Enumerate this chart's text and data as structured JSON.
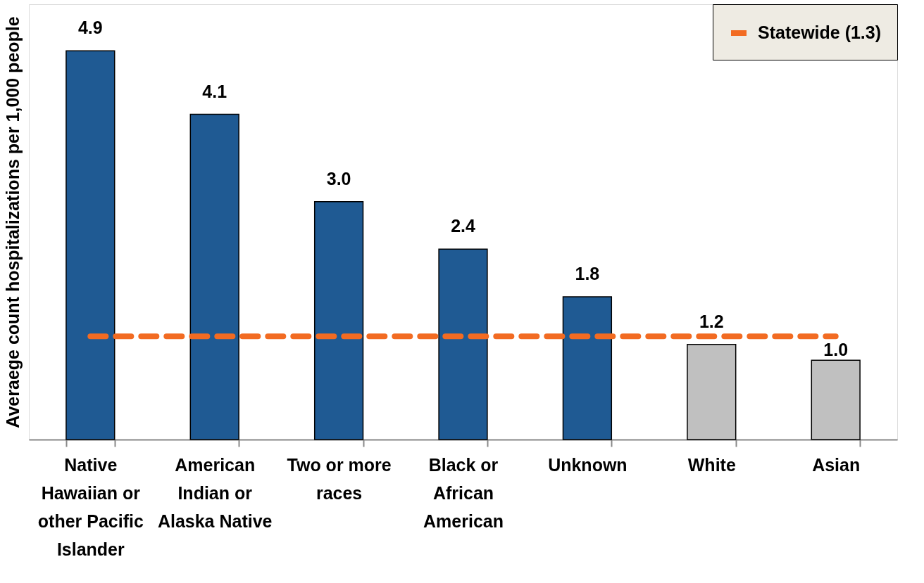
{
  "chart_data": {
    "type": "bar",
    "ylabel": "Averaege count hospitalizations per 1,000 people",
    "categories": [
      "Native Hawaiian or other Pacific Islander",
      "American Indian or Alaska Native",
      "Two or more races",
      "Black or African American",
      "Unknown",
      "White",
      "Asian"
    ],
    "values": [
      4.9,
      4.1,
      3.0,
      2.4,
      1.8,
      1.2,
      1.0
    ],
    "colors": [
      "#1f5a93",
      "#1f5a93",
      "#1f5a93",
      "#1f5a93",
      "#1f5a93",
      "#c0c0c0",
      "#c0c0c0"
    ],
    "value_labels": [
      "4.9",
      "4.1",
      "3.0",
      "2.4",
      "1.8",
      "1.2",
      "1.0"
    ],
    "ref_lines": [
      {
        "axis": "y",
        "value": 1.3,
        "label": "Statewide (1.3)",
        "color": "#f26b22",
        "line_style": "dashed"
      }
    ],
    "legend": "top right"
  }
}
